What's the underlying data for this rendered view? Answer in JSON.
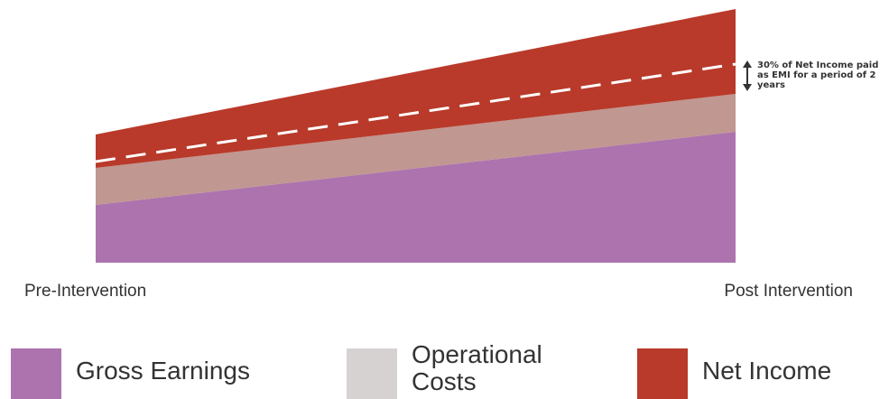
{
  "chart_data": {
    "type": "area",
    "stacked": true,
    "categories": [
      "Pre-Intervention",
      "Post Intervention"
    ],
    "series": [
      {
        "name": "Gross Earnings",
        "values": [
          64,
          145
        ],
        "color": "#ad73ae"
      },
      {
        "name": "Operational Costs",
        "values": [
          41,
          42
        ],
        "color": "#c09791"
      },
      {
        "name": "Net Income",
        "values": [
          37,
          94
        ],
        "color": "#b93a2a"
      }
    ],
    "threshold_line": {
      "style": "dashed",
      "color": "#ffffff",
      "values": [
        112,
        220
      ]
    },
    "annotation": "30% of Net Income paid as EMI for a period of 2 years",
    "ylim": [
      0,
      282
    ],
    "grid": false,
    "legend_position": "bottom"
  },
  "legend_colors": [
    "#ad73ae",
    "#d6d2d2",
    "#b93a2a"
  ]
}
